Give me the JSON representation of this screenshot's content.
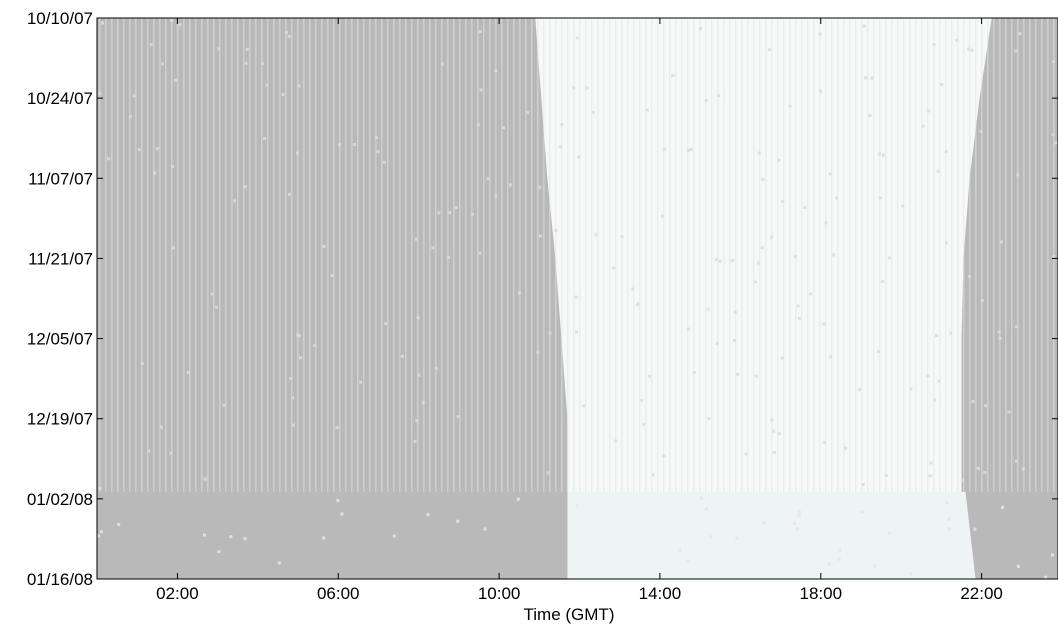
{
  "chart_data": {
    "type": "heatmap",
    "title": "",
    "xlabel": "Time (GMT)",
    "ylabel": "",
    "x_unit": "hours GMT",
    "xlim": [
      0,
      23.9
    ],
    "x_ticks": [
      {
        "value": 2,
        "label": "02:00"
      },
      {
        "value": 6,
        "label": "06:00"
      },
      {
        "value": 10,
        "label": "10:00"
      },
      {
        "value": 14,
        "label": "14:00"
      },
      {
        "value": 18,
        "label": "18:00"
      },
      {
        "value": 22,
        "label": "22:00"
      }
    ],
    "y_ticks": [
      "10/10/07",
      "10/24/07",
      "11/07/07",
      "11/21/07",
      "12/05/07",
      "12/19/07",
      "01/02/08",
      "01/16/08"
    ],
    "ylim": [
      "10/10/07",
      "01/16/08"
    ],
    "grid": false,
    "classes": [
      {
        "name": "night",
        "color": "#b9b9b9"
      },
      {
        "name": "day",
        "color": "#f7f9f9"
      }
    ],
    "day_boundaries": {
      "dates": [
        "10/10/07",
        "10/24/07",
        "11/07/07",
        "11/21/07",
        "12/05/07",
        "12/19/07",
        "01/02/08",
        "01/16/08"
      ],
      "start": [
        10.9,
        11.05,
        11.2,
        11.4,
        11.55,
        11.7,
        11.75,
        11.75
      ],
      "end": [
        22.25,
        21.95,
        21.7,
        21.55,
        21.5,
        21.5,
        21.6,
        21.85
      ]
    },
    "lower_block": {
      "from": "01/02/08",
      "to": "01/16/08",
      "day_start": 11.7,
      "day_end": 21.8
    }
  }
}
